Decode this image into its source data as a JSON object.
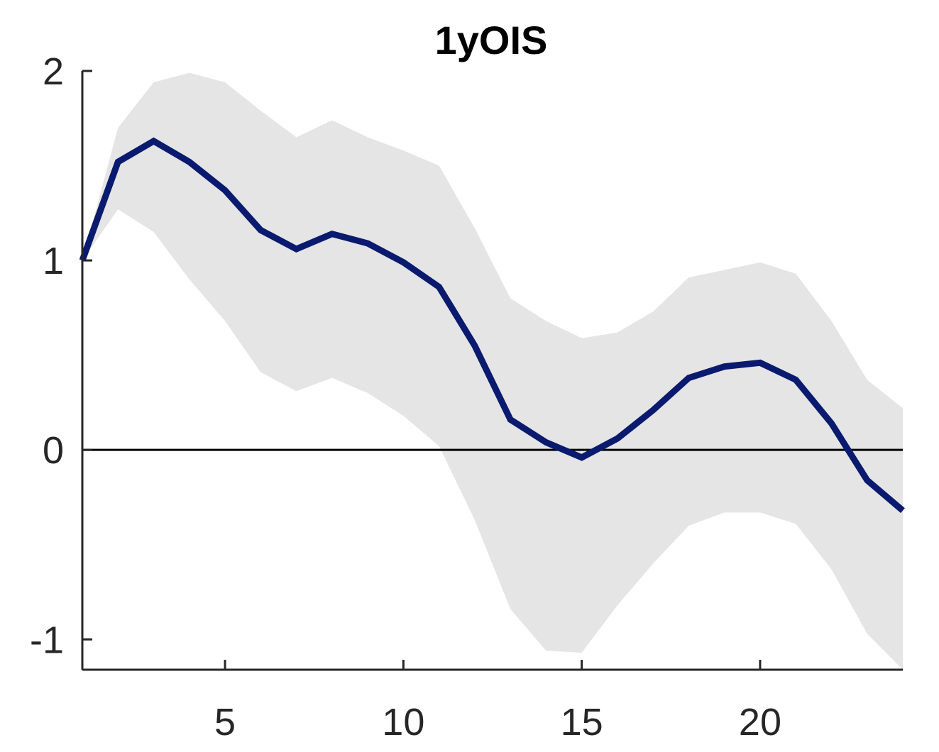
{
  "chart_data": {
    "type": "line",
    "title": "1yOIS",
    "xlabel": "",
    "ylabel": "",
    "xlim": [
      1,
      24
    ],
    "ylim": [
      -1.16,
      2
    ],
    "xticks": [
      5,
      10,
      15,
      20
    ],
    "yticks": [
      -1,
      0,
      1,
      2
    ],
    "xtick_labels": [
      "5",
      "10",
      "15",
      "20"
    ],
    "ytick_labels": [
      "-1",
      "0",
      "1",
      "2"
    ],
    "grid": false,
    "legend": "none",
    "zero_line": 0,
    "x": [
      1,
      2,
      3,
      4,
      5,
      6,
      7,
      8,
      9,
      10,
      11,
      12,
      13,
      14,
      15,
      16,
      17,
      18,
      19,
      20,
      21,
      22,
      23,
      24
    ],
    "series": [
      {
        "role": "median",
        "color": "#0a1a6e",
        "values": [
          1.0,
          1.52,
          1.63,
          1.52,
          1.37,
          1.16,
          1.06,
          1.14,
          1.09,
          0.99,
          0.86,
          0.55,
          0.16,
          0.04,
          -0.04,
          0.06,
          0.21,
          0.38,
          0.44,
          0.46,
          0.37,
          0.14,
          -0.16,
          -0.32
        ]
      }
    ],
    "band": {
      "color": "#e5e5e5",
      "upper": [
        1.0,
        1.7,
        1.94,
        1.99,
        1.94,
        1.79,
        1.65,
        1.74,
        1.65,
        1.58,
        1.5,
        1.17,
        0.8,
        0.68,
        0.59,
        0.62,
        0.73,
        0.91,
        0.95,
        0.99,
        0.93,
        0.68,
        0.37,
        0.22
      ],
      "lower": [
        1.0,
        1.27,
        1.15,
        0.9,
        0.68,
        0.41,
        0.31,
        0.38,
        0.3,
        0.18,
        0.02,
        -0.37,
        -0.84,
        -1.06,
        -1.07,
        -0.82,
        -0.6,
        -0.4,
        -0.33,
        -0.33,
        -0.39,
        -0.63,
        -0.97,
        -1.16
      ]
    }
  }
}
